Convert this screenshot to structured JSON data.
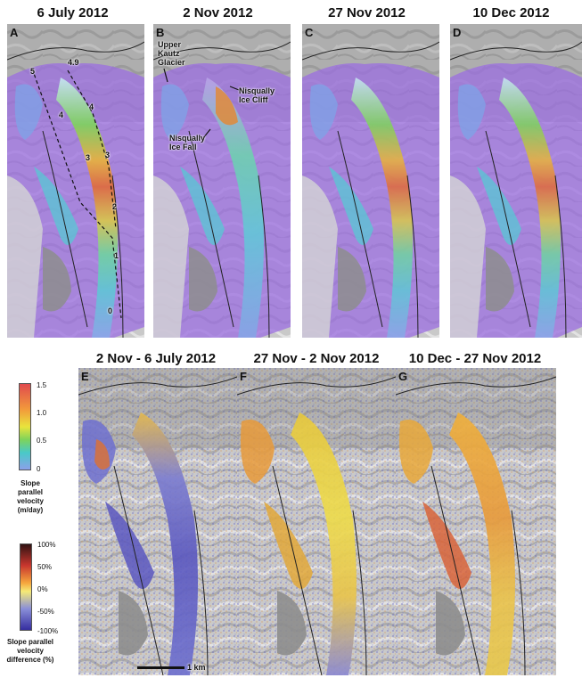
{
  "top_titles": [
    "6 July 2012",
    "2 Nov 2012",
    "27 Nov 2012",
    "10 Dec 2012"
  ],
  "bottom_titles": [
    "2 Nov - 6 July 2012",
    "27 Nov - 2 Nov 2012",
    "10 Dec - 27 Nov 2012"
  ],
  "panel_letters": [
    "A",
    "B",
    "C",
    "D",
    "E",
    "F",
    "G"
  ],
  "profile_labels": [
    "5",
    "4.9",
    "4",
    "4",
    "3",
    "3",
    "2",
    "1",
    "0"
  ],
  "annotations": {
    "upper_kautz": "Upper\nKautz\nGlacier",
    "nisqually_ice_cliff": "Nisqually\nIce Cliff",
    "nisqually_ice_fall": "Nisqually\nIce Fall"
  },
  "velocity_legend": {
    "ticks": [
      "1.5",
      "1.0",
      "0.5",
      "0"
    ],
    "title": "Slope parallel velocity (m/day)",
    "colors": [
      "#e8454a",
      "#f29a3b",
      "#f5e23c",
      "#7ed35b",
      "#49c9c8",
      "#7f9be8"
    ]
  },
  "difference_legend": {
    "ticks": [
      "100%",
      "50%",
      "0%",
      "-50%",
      "-100%"
    ],
    "title": "Slope parallel velocity difference (%)",
    "colors": [
      "#3a1a1a",
      "#c8362e",
      "#f7a43b",
      "#f5e870",
      "#8a8fd8",
      "#3b35a4"
    ]
  },
  "scale_bar": "1 km"
}
